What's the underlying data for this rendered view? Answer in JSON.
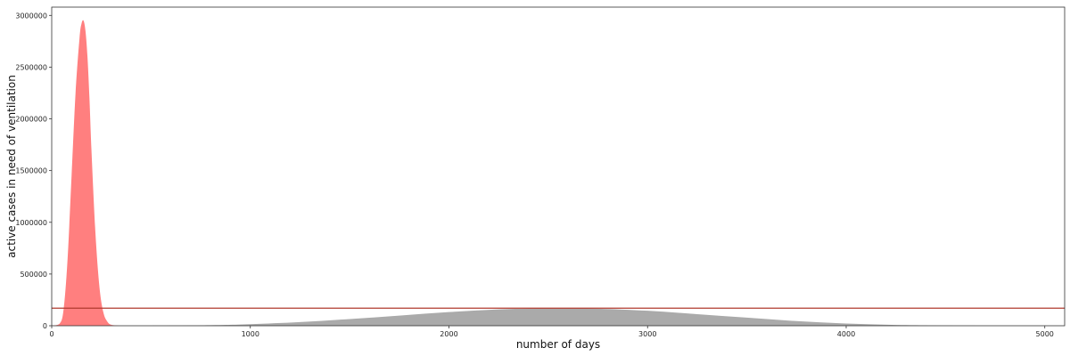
{
  "chart_data": {
    "type": "area",
    "title": "",
    "xlabel": "number of days",
    "ylabel": "active cases in need of ventilation",
    "xlim": [
      0,
      5100
    ],
    "ylim": [
      0,
      3080000
    ],
    "x_ticks": [
      0,
      1000,
      2000,
      3000,
      4000,
      5000
    ],
    "y_ticks": [
      0,
      500000,
      1000000,
      1500000,
      2000000,
      2500000,
      3000000
    ],
    "grid": false,
    "legend": "none",
    "series": [
      {
        "color": "#ff7f7f",
        "x": [
          0,
          40,
          60,
          80,
          100,
          120,
          140,
          150,
          160,
          170,
          180,
          190,
          200,
          220,
          240,
          260,
          280,
          300,
          340
        ],
        "values": [
          0,
          20000,
          160000,
          650000,
          1450000,
          2250000,
          2780000,
          2920000,
          2950000,
          2850000,
          2600000,
          2200000,
          1700000,
          900000,
          380000,
          130000,
          40000,
          10000,
          0
        ]
      },
      {
        "color": "#aaaaaa",
        "x": [
          500,
          800,
          1000,
          1250,
          1500,
          1750,
          2000,
          2250,
          2500,
          2550,
          2750,
          3000,
          3250,
          3500,
          3750,
          4000,
          4250,
          4500,
          4700
        ],
        "values": [
          0,
          5000,
          15000,
          35000,
          65000,
          98000,
          132000,
          158000,
          170000,
          171000,
          165000,
          145000,
          112000,
          78000,
          45000,
          22000,
          8000,
          2000,
          0
        ]
      }
    ],
    "reference_line": {
      "y": 170000,
      "color": "#b03a2e"
    }
  }
}
